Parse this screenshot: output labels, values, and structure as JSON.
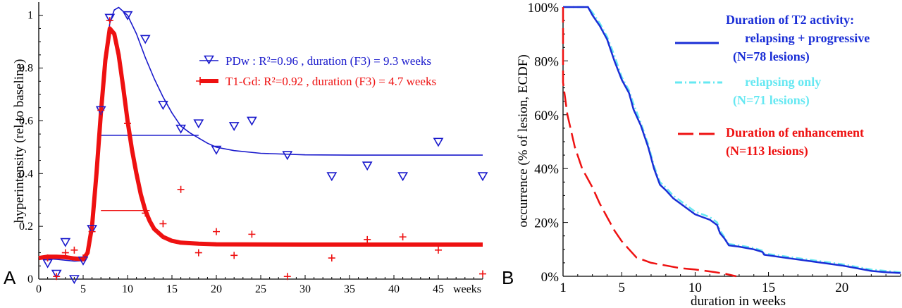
{
  "chart_data": [
    {
      "type": "line",
      "panel_label": "A",
      "xlabel": "weeks",
      "ylabel": "hyperintensity (rel.to baseline)",
      "xlim": [
        0,
        50
      ],
      "ylim": [
        0,
        1.05
      ],
      "x_ticks": [
        0,
        5,
        10,
        15,
        20,
        25,
        30,
        35,
        40,
        45
      ],
      "y_ticks": [
        0,
        0.2,
        0.4,
        0.6,
        0.8,
        1
      ],
      "grid": false,
      "legend_position": "top-right",
      "series": [
        {
          "name": "PDw",
          "legend_label": "PDw   : R²=0.96 ,  duration (F3) = 9.3 weeks",
          "color": "#1a1acc",
          "marker": "triangle-down",
          "points": [
            {
              "x": 1,
              "y": 0.06
            },
            {
              "x": 2,
              "y": 0.02
            },
            {
              "x": 3,
              "y": 0.14
            },
            {
              "x": 4,
              "y": 0.0
            },
            {
              "x": 5,
              "y": 0.07
            },
            {
              "x": 6,
              "y": 0.19
            },
            {
              "x": 7,
              "y": 0.64
            },
            {
              "x": 8,
              "y": 0.99
            },
            {
              "x": 10,
              "y": 1.0
            },
            {
              "x": 12,
              "y": 0.91
            },
            {
              "x": 14,
              "y": 0.66
            },
            {
              "x": 16,
              "y": 0.57
            },
            {
              "x": 18,
              "y": 0.59
            },
            {
              "x": 20,
              "y": 0.49
            },
            {
              "x": 22,
              "y": 0.58
            },
            {
              "x": 24,
              "y": 0.6
            },
            {
              "x": 28,
              "y": 0.47
            },
            {
              "x": 33,
              "y": 0.39
            },
            {
              "x": 37,
              "y": 0.43
            },
            {
              "x": 41,
              "y": 0.39
            },
            {
              "x": 45,
              "y": 0.52
            },
            {
              "x": 50,
              "y": 0.39
            }
          ],
          "fit": [
            [
              0,
              0.08
            ],
            [
              2,
              0.075
            ],
            [
              4,
              0.068
            ],
            [
              5,
              0.07
            ],
            [
              5.5,
              0.1
            ],
            [
              6,
              0.2
            ],
            [
              6.5,
              0.4
            ],
            [
              7,
              0.62
            ],
            [
              7.5,
              0.83
            ],
            [
              8,
              0.97
            ],
            [
              8.5,
              1.02
            ],
            [
              9,
              1.03
            ],
            [
              10,
              1.0
            ],
            [
              11,
              0.93
            ],
            [
              12,
              0.84
            ],
            [
              13,
              0.76
            ],
            [
              14,
              0.69
            ],
            [
              15,
              0.63
            ],
            [
              16,
              0.58
            ],
            [
              17,
              0.555
            ],
            [
              18,
              0.535
            ],
            [
              19,
              0.515
            ],
            [
              20,
              0.5
            ],
            [
              22,
              0.487
            ],
            [
              25,
              0.477
            ],
            [
              30,
              0.471
            ],
            [
              35,
              0.47
            ],
            [
              40,
              0.47
            ],
            [
              45,
              0.47
            ],
            [
              50,
              0.47
            ]
          ],
          "half_max_line": {
            "y": 0.545,
            "x_start": 7,
            "x_end": 18
          }
        },
        {
          "name": "T1-Gd",
          "legend_label": "T1-Gd: R²=0.92 ,  duration (F3) = 4.7 weeks",
          "color": "#ee1111",
          "marker": "plus",
          "points": [
            {
              "x": 1,
              "y": 0.08
            },
            {
              "x": 2,
              "y": 0.01
            },
            {
              "x": 3,
              "y": 0.1
            },
            {
              "x": 4,
              "y": 0.11
            },
            {
              "x": 5,
              "y": 0.08
            },
            {
              "x": 6,
              "y": 0.18
            },
            {
              "x": 7,
              "y": 0.64
            },
            {
              "x": 8,
              "y": 0.98
            },
            {
              "x": 10,
              "y": 0.59
            },
            {
              "x": 12,
              "y": 0.25
            },
            {
              "x": 14,
              "y": 0.21
            },
            {
              "x": 16,
              "y": 0.34
            },
            {
              "x": 18,
              "y": 0.1
            },
            {
              "x": 20,
              "y": 0.18
            },
            {
              "x": 22,
              "y": 0.09
            },
            {
              "x": 24,
              "y": 0.17
            },
            {
              "x": 28,
              "y": 0.01
            },
            {
              "x": 33,
              "y": 0.08
            },
            {
              "x": 37,
              "y": 0.15
            },
            {
              "x": 41,
              "y": 0.16
            },
            {
              "x": 45,
              "y": 0.11
            },
            {
              "x": 50,
              "y": 0.02
            }
          ],
          "fit": [
            [
              0,
              0.08
            ],
            [
              1,
              0.085
            ],
            [
              2,
              0.085
            ],
            [
              3,
              0.083
            ],
            [
              4,
              0.078
            ],
            [
              5,
              0.075
            ],
            [
              5.5,
              0.1
            ],
            [
              6,
              0.2
            ],
            [
              6.5,
              0.4
            ],
            [
              7,
              0.63
            ],
            [
              7.5,
              0.83
            ],
            [
              8,
              0.95
            ],
            [
              8.5,
              0.93
            ],
            [
              9,
              0.85
            ],
            [
              9.5,
              0.73
            ],
            [
              10,
              0.6
            ],
            [
              10.5,
              0.49
            ],
            [
              11,
              0.4
            ],
            [
              11.5,
              0.32
            ],
            [
              12,
              0.26
            ],
            [
              12.5,
              0.22
            ],
            [
              13,
              0.19
            ],
            [
              14,
              0.16
            ],
            [
              15,
              0.145
            ],
            [
              16,
              0.138
            ],
            [
              18,
              0.134
            ],
            [
              20,
              0.132
            ],
            [
              30,
              0.131
            ],
            [
              40,
              0.131
            ],
            [
              50,
              0.131
            ]
          ],
          "half_max_line": {
            "y": 0.26,
            "x_start": 7,
            "x_end": 12.5
          }
        }
      ]
    },
    {
      "type": "line",
      "panel_label": "B",
      "xlabel": "duration in weeks",
      "ylabel": "occurrence (% of lesion, ECDF)",
      "xlim": [
        1,
        24
      ],
      "ylim": [
        0,
        100
      ],
      "x_ticks": [
        1,
        5,
        10,
        15,
        20
      ],
      "y_ticks": [
        0,
        20,
        40,
        60,
        80,
        100
      ],
      "y_tick_labels": [
        "0%",
        "20%",
        "40%",
        "60%",
        "80%",
        "100%"
      ],
      "grid": false,
      "legend_position": "top-right",
      "legend_title": "Duration of T2 activity:",
      "series": [
        {
          "name": "relapsing + progressive",
          "n_label": "(N=78 lesions)",
          "color": "#1a2ed6",
          "style": "solid",
          "points": [
            [
              1,
              100
            ],
            [
              2.7,
              100
            ],
            [
              3.0,
              97
            ],
            [
              3.5,
              93
            ],
            [
              4.0,
              88
            ],
            [
              4.5,
              80
            ],
            [
              5.0,
              73
            ],
            [
              5.5,
              68
            ],
            [
              5.8,
              62
            ],
            [
              6.3,
              56
            ],
            [
              6.8,
              48
            ],
            [
              7.2,
              40
            ],
            [
              7.6,
              34
            ],
            [
              8.0,
              32
            ],
            [
              8.5,
              29
            ],
            [
              9.0,
              27
            ],
            [
              9.5,
              25
            ],
            [
              10,
              23
            ],
            [
              10.5,
              22
            ],
            [
              11,
              21
            ],
            [
              11.5,
              19
            ],
            [
              11.7,
              16
            ],
            [
              12,
              14
            ],
            [
              12.3,
              11.5
            ],
            [
              13,
              11
            ],
            [
              14,
              10
            ],
            [
              14.6,
              9
            ],
            [
              14.7,
              8
            ],
            [
              16,
              7
            ],
            [
              18,
              5.5
            ],
            [
              20,
              4
            ],
            [
              21,
              3
            ],
            [
              22,
              2
            ],
            [
              23,
              1.5
            ],
            [
              24,
              1.2
            ]
          ]
        },
        {
          "name": "relapsing only",
          "n_label": "(N=71 lesions)",
          "color": "#66e8f2",
          "style": "dash-dot",
          "points": [
            [
              1,
              100
            ],
            [
              2.7,
              100
            ],
            [
              3.0,
              98
            ],
            [
              3.5,
              94
            ],
            [
              4.0,
              89
            ],
            [
              4.5,
              82
            ],
            [
              5.0,
              74
            ],
            [
              5.5,
              69
            ],
            [
              5.8,
              64
            ],
            [
              6.3,
              57
            ],
            [
              6.8,
              49
            ],
            [
              7.2,
              41
            ],
            [
              7.6,
              35
            ],
            [
              8.0,
              33
            ],
            [
              8.5,
              30
            ],
            [
              9.0,
              28
            ],
            [
              9.5,
              26
            ],
            [
              10,
              24
            ],
            [
              10.5,
              23
            ],
            [
              11,
              22
            ],
            [
              11.5,
              20
            ],
            [
              11.7,
              17
            ],
            [
              12,
              14.5
            ],
            [
              12.3,
              12
            ],
            [
              13,
              11.5
            ],
            [
              14,
              10.5
            ],
            [
              14.6,
              9.5
            ],
            [
              14.7,
              8.5
            ],
            [
              16,
              7.5
            ],
            [
              18,
              6
            ],
            [
              20,
              4.5
            ],
            [
              21,
              3.5
            ],
            [
              22,
              2.5
            ],
            [
              23,
              2
            ],
            [
              24,
              1.5
            ]
          ]
        },
        {
          "name": "Duration of enhancement",
          "n_label": "(N=113 lesions)",
          "color": "#ee1111",
          "style": "dashed",
          "points": [
            [
              1,
              100
            ],
            [
              1.0,
              72
            ],
            [
              1.3,
              60
            ],
            [
              1.8,
              48
            ],
            [
              2.3,
              40
            ],
            [
              3.0,
              33
            ],
            [
              3.5,
              27
            ],
            [
              4.0,
              22
            ],
            [
              4.5,
              17
            ],
            [
              5.0,
              13
            ],
            [
              5.5,
              10
            ],
            [
              6.0,
              7
            ],
            [
              7.0,
              5
            ],
            [
              8.0,
              4
            ],
            [
              9.0,
              3
            ],
            [
              10,
              2.5
            ],
            [
              11,
              1.8
            ],
            [
              12,
              1
            ],
            [
              12.8,
              0
            ]
          ]
        }
      ]
    }
  ]
}
